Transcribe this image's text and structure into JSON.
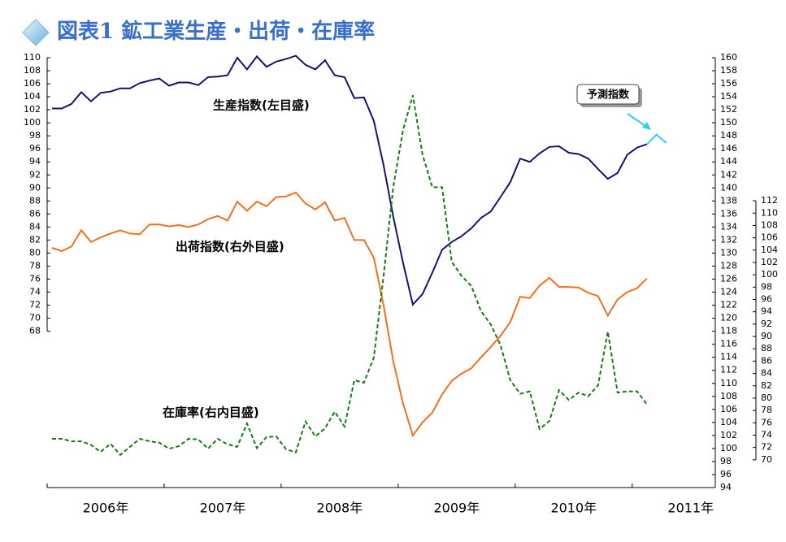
{
  "chart_data": {
    "type": "line",
    "title": "図表1 鉱工業生産・出荷・在庫率",
    "x": [
      2006.042,
      2006.125,
      2006.208,
      2006.292,
      2006.375,
      2006.458,
      2006.542,
      2006.625,
      2006.708,
      2006.792,
      2006.875,
      2006.958,
      2007.042,
      2007.125,
      2007.208,
      2007.292,
      2007.375,
      2007.458,
      2007.542,
      2007.625,
      2007.708,
      2007.792,
      2007.875,
      2007.958,
      2008.042,
      2008.125,
      2008.208,
      2008.292,
      2008.375,
      2008.458,
      2008.542,
      2008.625,
      2008.708,
      2008.792,
      2008.875,
      2008.958,
      2009.042,
      2009.125,
      2009.208,
      2009.292,
      2009.375,
      2009.458,
      2009.542,
      2009.625,
      2009.708,
      2009.792,
      2009.875,
      2009.958,
      2010.042,
      2010.125,
      2010.208,
      2010.292,
      2010.375,
      2010.458,
      2010.542,
      2010.625,
      2010.708,
      2010.792,
      2010.875,
      2010.958,
      2011.042,
      2011.125
    ],
    "xlim": [
      2006,
      2011.71
    ],
    "xticks": [
      {
        "value": 2006.5,
        "label": "2006年"
      },
      {
        "value": 2007.5,
        "label": "2007年"
      },
      {
        "value": 2008.5,
        "label": "2008年"
      },
      {
        "value": 2009.5,
        "label": "2009年"
      },
      {
        "value": 2010.5,
        "label": "2010年"
      },
      {
        "value": 2011.5,
        "label": "2011年"
      }
    ],
    "x_minor_ticks": [
      2006,
      2007,
      2008,
      2009,
      2010,
      2011
    ],
    "ylim": [
      44,
      110
    ],
    "yticks": [
      68,
      70,
      72,
      74,
      76,
      78,
      80,
      82,
      84,
      86,
      88,
      90,
      92,
      94,
      96,
      98,
      100,
      102,
      104,
      106,
      108,
      110
    ],
    "y2lim": [
      94,
      160
    ],
    "y2ticks": [
      94,
      96,
      98,
      100,
      102,
      104,
      106,
      108,
      110,
      112,
      114,
      116,
      118,
      120,
      122,
      124,
      126,
      128,
      130,
      132,
      134,
      136,
      138,
      140,
      142,
      144,
      146,
      148,
      150,
      152,
      154,
      156,
      158,
      160
    ],
    "y3lim": [
      65.5,
      135.2
    ],
    "y3ticks": [
      70,
      72,
      74,
      76,
      78,
      80,
      82,
      84,
      86,
      88,
      90,
      92,
      94,
      96,
      98,
      100,
      102,
      104,
      106,
      108,
      110,
      112
    ],
    "series": [
      {
        "name": "生産指数(左目盛)",
        "color": "#14146e",
        "axis": "y",
        "dash": false,
        "values": [
          102.2,
          102.2,
          102.9,
          104.7,
          103.3,
          104.6,
          104.8,
          105.3,
          105.3,
          106.1,
          106.5,
          106.8,
          105.7,
          106.2,
          106.2,
          105.8,
          107.0,
          107.1,
          107.3,
          110.0,
          108.2,
          110.2,
          108.6,
          109.4,
          109.8,
          110.3,
          108.9,
          108.2,
          109.6,
          107.3,
          107.0,
          103.8,
          103.9,
          100.3,
          93.5,
          85.6,
          78.5,
          72.1,
          73.7,
          77.0,
          80.5,
          81.7,
          82.6,
          83.8,
          85.4,
          86.4,
          88.6,
          90.9,
          94.5,
          94.0,
          95.3,
          96.3,
          96.4,
          95.4,
          95.2,
          94.5,
          92.9,
          91.4,
          92.3,
          95.1,
          96.2,
          96.7
        ]
      },
      {
        "name": "出荷指数(右外目盛)",
        "color": "#f07020",
        "axis": "y2",
        "dash": false,
        "values": [
          130.8,
          130.3,
          131.0,
          133.5,
          131.7,
          132.4,
          133.0,
          133.5,
          133.0,
          132.9,
          134.4,
          134.4,
          134.1,
          134.3,
          134.0,
          134.4,
          135.2,
          135.7,
          135.0,
          137.9,
          136.5,
          137.9,
          137.2,
          138.6,
          138.7,
          139.3,
          137.6,
          136.7,
          137.8,
          135.0,
          135.4,
          132.0,
          132.0,
          129.3,
          122.0,
          113.4,
          106.9,
          102.0,
          104.0,
          105.5,
          108.3,
          110.4,
          111.5,
          112.3,
          114.0,
          115.6,
          117.3,
          119.4,
          123.3,
          123.1,
          125.0,
          126.2,
          124.8,
          124.8,
          124.7,
          123.9,
          123.4,
          120.4,
          122.9,
          124.0,
          124.6,
          126.1
        ]
      },
      {
        "name": "在庫率(右内目盛)",
        "color": "#1a7a1a",
        "axis": "y3",
        "dash": true,
        "values": [
          73.4,
          73.4,
          73.0,
          73.0,
          72.4,
          71.3,
          72.6,
          70.8,
          72.1,
          73.4,
          73.0,
          72.8,
          71.8,
          72.2,
          73.4,
          73.3,
          71.8,
          73.4,
          72.5,
          72.1,
          75.9,
          71.9,
          73.7,
          73.8,
          71.7,
          71.2,
          76.2,
          73.8,
          75.1,
          77.8,
          75.4,
          82.9,
          82.5,
          86.6,
          99.8,
          114.2,
          123.5,
          129.1,
          119.5,
          114.2,
          114.2,
          102.1,
          99.8,
          98.2,
          94.1,
          91.9,
          88.6,
          82.9,
          80.7,
          81.1,
          75.0,
          76.3,
          81.3,
          79.7,
          80.9,
          80.3,
          82.1,
          90.8,
          80.9,
          81.1,
          81.1,
          79.0
        ]
      }
    ],
    "forecast": {
      "name": "予測指数",
      "color": "#33ccee",
      "axis": "y",
      "x": [
        2011.125,
        2011.208,
        2011.292
      ],
      "values": [
        96.7,
        98.2,
        96.9
      ]
    }
  }
}
